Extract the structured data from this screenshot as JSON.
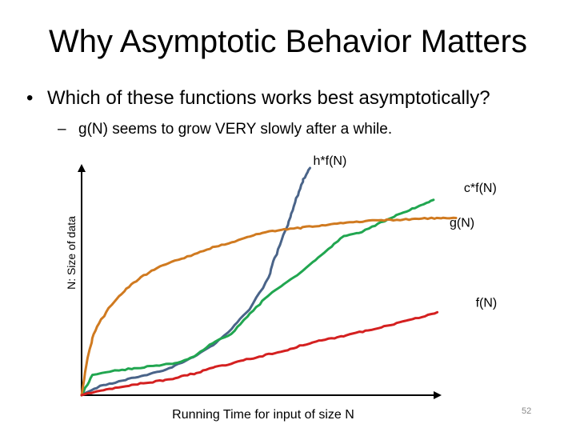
{
  "slide": {
    "title": "Why Asymptotic Behavior Matters",
    "bullet": "Which of these functions works best asymptotically?",
    "sub_bullet": "g(N) seems to grow VERY slowly after a while.",
    "page_number": "52"
  },
  "chart_data": {
    "type": "line",
    "title": "",
    "xlabel": "Running Time for input of size N",
    "ylabel": "N: Size of data",
    "xlim": [
      0,
      100
    ],
    "ylim": [
      0,
      100
    ],
    "grid": false,
    "ticks": "none",
    "series": [
      {
        "name": "h*f(N)",
        "color": "#4a6489",
        "x": [
          0,
          5,
          10,
          15,
          20,
          25,
          30,
          35,
          40,
          45,
          50,
          52,
          55,
          57,
          59,
          61
        ],
        "y": [
          0,
          4,
          6,
          8,
          10,
          13,
          17,
          22,
          29,
          38,
          52,
          62,
          75,
          85,
          94,
          100
        ]
      },
      {
        "name": "c*f(N)",
        "color": "#21a650",
        "x": [
          0,
          3,
          10,
          15,
          20,
          25,
          30,
          35,
          40,
          45,
          50,
          55,
          60,
          65,
          70,
          75,
          80,
          85,
          90,
          94
        ],
        "y": [
          0,
          9,
          11,
          12,
          13,
          14,
          17,
          23,
          27,
          36,
          44,
          50,
          56,
          63,
          70,
          72,
          76,
          80,
          83,
          86
        ]
      },
      {
        "name": "g(N)",
        "color": "#d07a20",
        "x": [
          0,
          2,
          4,
          8,
          12,
          16,
          20,
          25,
          30,
          35,
          40,
          45,
          50,
          55,
          60,
          65,
          70,
          75,
          80,
          85,
          90,
          95,
          100
        ],
        "y": [
          0,
          20,
          30,
          40,
          47,
          52,
          56,
          59,
          62,
          65,
          67,
          70,
          72,
          73,
          74,
          75,
          76,
          76.5,
          77,
          77.3,
          77.6,
          78,
          78
        ]
      },
      {
        "name": "f(N)",
        "color": "#d42020",
        "x": [
          0,
          5,
          10,
          15,
          20,
          25,
          30,
          35,
          40,
          45,
          50,
          55,
          60,
          65,
          70,
          75,
          80,
          85,
          90,
          95
        ],
        "y": [
          0,
          2,
          3.5,
          5,
          6,
          7.5,
          9.5,
          12,
          14,
          16,
          18,
          20,
          22.5,
          24.5,
          26,
          28,
          30,
          32,
          34,
          36.5
        ]
      }
    ],
    "annotations": [
      {
        "series": "h*f(N)",
        "text": "h*f(N)"
      },
      {
        "series": "c*f(N)",
        "text": "c*f(N)"
      },
      {
        "series": "g(N)",
        "text": "g(N)"
      },
      {
        "series": "f(N)",
        "text": "f(N)"
      }
    ]
  }
}
